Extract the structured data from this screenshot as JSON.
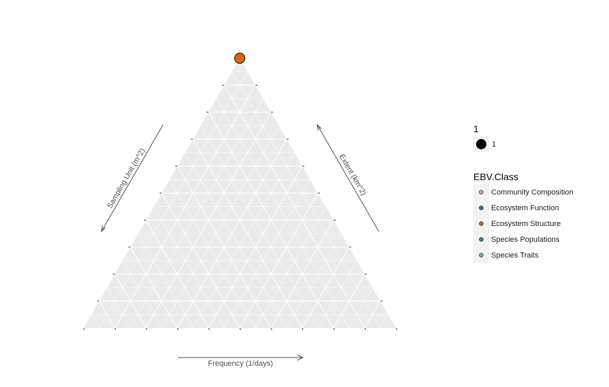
{
  "chart_data": {
    "type": "scatter",
    "subtype": "ternary",
    "axes": {
      "left": {
        "label": "Sampling Unit (m^2)"
      },
      "right": {
        "label": "Extent (km^2)"
      },
      "bottom": {
        "label": "Frequency (1/days)"
      }
    },
    "grid": true,
    "points": [
      {
        "sampling_unit": 1,
        "extent": 0,
        "frequency": 0,
        "size": 1,
        "class": "Ecosystem Structure"
      }
    ],
    "legend_size": {
      "title": "1",
      "entries": [
        {
          "label": "1"
        }
      ]
    },
    "legend_color": {
      "title": "EBV.Class",
      "entries": [
        {
          "label": "Community Composition",
          "color": "#e7a3c8"
        },
        {
          "label": "Ecosystem Function",
          "color": "#2c6fb5"
        },
        {
          "label": "Ecosystem Structure",
          "color": "#e1620e"
        },
        {
          "label": "Species Populations",
          "color": "#1f9e77"
        },
        {
          "label": "Species Traits",
          "color": "#74b4e0"
        }
      ]
    },
    "colors": {
      "panel": "#ebebeb",
      "grid": "#ffffff",
      "arrow": "#4d4d4d"
    }
  }
}
